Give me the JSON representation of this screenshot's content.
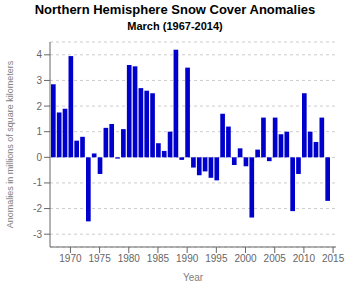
{
  "chart_data": {
    "type": "bar",
    "title": "Northern Hemisphere Snow Cover Anomalies",
    "subtitle": "March (1967-2014)",
    "xlabel": "Year",
    "ylabel": "Anomalies in millions of square kilometers",
    "color": "#0000cc",
    "x": [
      1967,
      1968,
      1969,
      1970,
      1971,
      1972,
      1973,
      1974,
      1975,
      1976,
      1977,
      1978,
      1979,
      1980,
      1981,
      1982,
      1983,
      1984,
      1985,
      1986,
      1987,
      1988,
      1989,
      1990,
      1991,
      1992,
      1993,
      1994,
      1995,
      1996,
      1997,
      1998,
      1999,
      2000,
      2001,
      2002,
      2003,
      2004,
      2005,
      2006,
      2007,
      2008,
      2009,
      2010,
      2011,
      2012,
      2013,
      2014
    ],
    "values": [
      2.85,
      1.75,
      1.9,
      3.95,
      0.65,
      0.8,
      -2.5,
      0.15,
      -0.65,
      1.15,
      1.3,
      -0.05,
      1.1,
      3.6,
      3.55,
      2.7,
      2.6,
      2.5,
      0.55,
      0.25,
      1.0,
      4.2,
      -0.1,
      3.5,
      -0.4,
      -0.7,
      -0.55,
      -0.8,
      -0.9,
      1.7,
      1.2,
      -0.3,
      0.35,
      -0.35,
      -2.35,
      0.3,
      1.55,
      -0.15,
      1.55,
      0.9,
      1.0,
      -2.1,
      -0.65,
      2.5,
      1.0,
      0.6,
      1.55,
      -1.7
    ],
    "xlim": [
      1966.5,
      2015.5
    ],
    "xticks": [
      1970,
      1975,
      1980,
      1985,
      1990,
      1995,
      2000,
      2005,
      2010,
      2015
    ],
    "ylim": [
      -3.5,
      4.5
    ],
    "yticks": [
      -3.0,
      -2.0,
      -1.0,
      0.0,
      1.0,
      2.0,
      3.0,
      4.0
    ],
    "grid": true
  }
}
